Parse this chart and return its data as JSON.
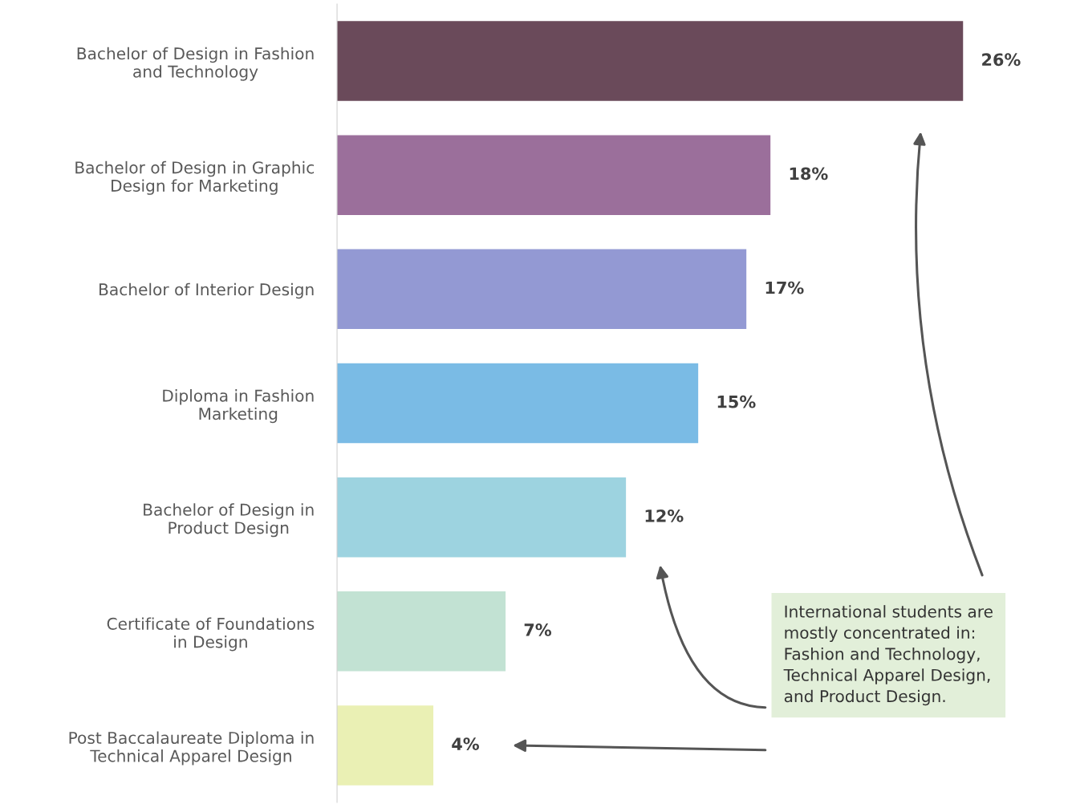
{
  "chart_data": {
    "type": "bar",
    "orientation": "horizontal",
    "categories": [
      "Bachelor of Design in Fashion\nand Technology",
      "Bachelor of Design in Graphic\nDesign for Marketing",
      "Bachelor of Interior Design",
      "Diploma in Fashion\nMarketing",
      "Bachelor of Design in\nProduct Design",
      "Certificate of Foundations\nin Design",
      "Post Baccalaureate Diploma in\nTechnical Apparel Design"
    ],
    "values": [
      26,
      18,
      17,
      15,
      12,
      7,
      4
    ],
    "colors": [
      "#6a4a5a",
      "#9b6f9b",
      "#9399d3",
      "#7abbe5",
      "#9dd3e0",
      "#c2e2d3",
      "#eaf0b4"
    ],
    "value_labels": [
      "26%",
      "18%",
      "17%",
      "15%",
      "12%",
      "7%",
      "4%"
    ],
    "annotations": [
      "International students are\nmostly concentrated in:\nFashion and Technology,\nTechnical Apparel Design,\nand Product Design."
    ],
    "grid": false,
    "legend": false
  }
}
